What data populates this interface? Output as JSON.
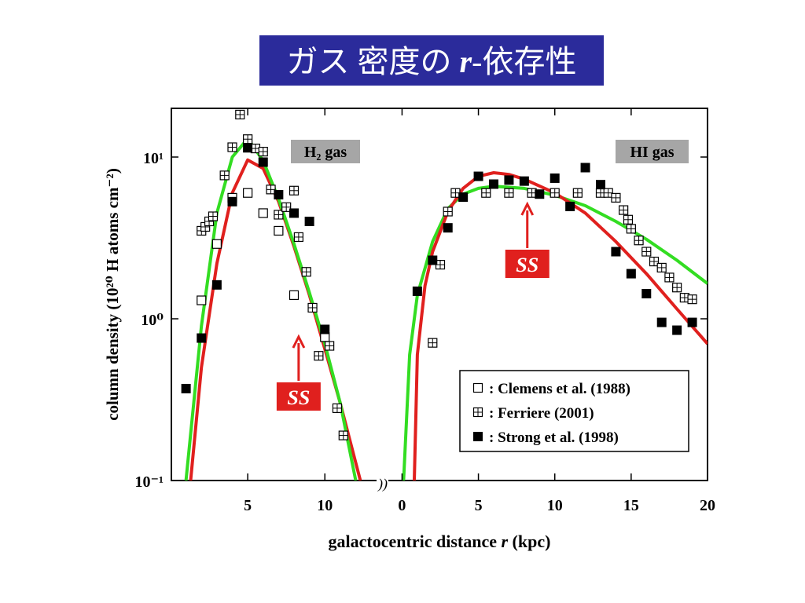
{
  "title_parts": [
    "ガス 密度の ",
    "r",
    "-依存性"
  ],
  "axes": {
    "xlabel_parts": [
      "galactocentric distance  ",
      "r",
      " (kpc)"
    ],
    "ylabel": "column density  (10²⁰ H atoms cm⁻²)"
  },
  "legend": [
    {
      "marker": "open",
      "label": ": Clemens et al. (1988)"
    },
    {
      "marker": "plus",
      "label": ": Ferriere (2001)"
    },
    {
      "marker": "filled",
      "label": ": Strong et al. (1998)"
    }
  ],
  "chart_data": [
    {
      "type": "scatter",
      "label": "H₂ gas",
      "annotation": "SS",
      "annotation_x": 8.3,
      "log_y": true,
      "xlim": [
        0,
        13.3
      ],
      "xticks": [
        5,
        10
      ],
      "ylim": [
        0.1,
        20
      ],
      "yticks": [
        {
          "value": 0.1,
          "label": "10⁻¹"
        },
        {
          "value": 1,
          "label": "10⁰"
        },
        {
          "value": 10,
          "label": "10¹"
        }
      ],
      "series": [
        {
          "marker": "open",
          "x": [
            2,
            3,
            4,
            5,
            6,
            7,
            8,
            10
          ],
          "values": [
            1.3,
            2.9,
            5.6,
            6.0,
            4.5,
            3.5,
            1.4,
            0.77
          ]
        },
        {
          "marker": "plus",
          "x": [
            2,
            2.25,
            2.5,
            2.75,
            3.5,
            4,
            4.5,
            5,
            5.5,
            6,
            6.5,
            7,
            7.5,
            8,
            8.3,
            8.8,
            9.2,
            9.6,
            10.3,
            10.8,
            11.2
          ],
          "values": [
            3.5,
            3.7,
            4.0,
            4.3,
            7.7,
            11.5,
            18.3,
            12.9,
            11.3,
            10.8,
            6.3,
            4.4,
            4.9,
            6.2,
            3.2,
            1.95,
            1.17,
            0.59,
            0.68,
            0.28,
            0.19
          ]
        },
        {
          "marker": "filled",
          "x": [
            1,
            2,
            3,
            4,
            5,
            6,
            7,
            8,
            9,
            10
          ],
          "values": [
            0.37,
            0.76,
            1.62,
            5.3,
            11.4,
            9.3,
            5.85,
            4.5,
            4.0,
            0.86
          ]
        },
        {
          "style": "line",
          "color": "#e0201e",
          "x": [
            1.3,
            2,
            3,
            4,
            5,
            6,
            7,
            8,
            9,
            10,
            11,
            12.3
          ],
          "values": [
            0.1,
            0.5,
            2.2,
            6.0,
            9.6,
            8.5,
            5.3,
            2.8,
            1.4,
            0.65,
            0.3,
            0.1
          ]
        },
        {
          "style": "line",
          "color": "#33dd22",
          "x": [
            1,
            2,
            3,
            4,
            5,
            6,
            7,
            8,
            9,
            10,
            11,
            12
          ],
          "values": [
            0.1,
            0.9,
            4.5,
            10,
            13,
            9.5,
            5.5,
            2.9,
            1.45,
            0.7,
            0.3,
            0.1
          ]
        }
      ]
    },
    {
      "type": "scatter",
      "label": "HI gas",
      "annotation": "SS",
      "annotation_x": 8.2,
      "log_y": true,
      "xlim": [
        -1,
        20
      ],
      "xticks": [
        0,
        5,
        10,
        15,
        20
      ],
      "ylim": [
        0.1,
        20
      ],
      "series": [
        {
          "marker": "plus",
          "x": [
            2,
            2.5,
            3,
            3.5,
            5.5,
            7,
            8.5,
            10,
            11.5,
            13,
            13.5,
            14,
            14.5,
            14.8,
            15,
            15.5,
            16,
            16.5,
            17,
            17.5,
            18,
            18.5,
            19
          ],
          "values": [
            0.71,
            2.16,
            4.6,
            6.0,
            6.0,
            6.0,
            6.0,
            6.0,
            6.0,
            6.0,
            6.0,
            5.6,
            4.7,
            4.1,
            3.6,
            3.05,
            2.6,
            2.26,
            2.07,
            1.8,
            1.56,
            1.35,
            1.32
          ]
        },
        {
          "marker": "filled",
          "x": [
            1,
            2,
            3,
            4,
            5,
            6,
            7,
            8,
            9,
            10,
            11,
            12,
            13,
            14,
            15,
            16,
            17,
            18,
            19
          ],
          "values": [
            1.48,
            2.3,
            3.65,
            5.65,
            7.6,
            6.8,
            7.2,
            7.1,
            5.9,
            7.4,
            4.95,
            8.6,
            6.75,
            2.6,
            1.9,
            1.43,
            0.95,
            0.85,
            0.95
          ]
        },
        {
          "style": "line",
          "color": "#33dd22",
          "x": [
            0.1,
            0.5,
            1,
            2,
            3,
            4,
            5,
            6,
            8,
            10,
            12,
            14,
            16,
            18,
            20
          ],
          "values": [
            0.1,
            0.6,
            1.4,
            3.0,
            4.8,
            5.9,
            6.4,
            6.6,
            6.4,
            5.8,
            5.0,
            4.0,
            3.1,
            2.3,
            1.65
          ]
        },
        {
          "style": "line",
          "color": "#e0201e",
          "x": [
            0.8,
            1,
            1.5,
            2,
            3,
            4,
            5,
            6,
            7,
            8,
            10,
            12,
            14,
            16,
            18,
            20
          ],
          "values": [
            0.1,
            0.6,
            1.6,
            2.6,
            4.6,
            6.4,
            7.6,
            8.0,
            7.8,
            7.3,
            6.0,
            4.5,
            3.0,
            1.9,
            1.15,
            0.7
          ]
        }
      ]
    }
  ]
}
